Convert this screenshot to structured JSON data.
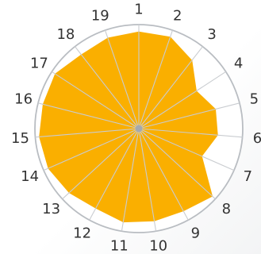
{
  "chart_data": {
    "type": "radar",
    "title": "",
    "categories": [
      "1",
      "2",
      "3",
      "4",
      "5",
      "6",
      "7",
      "8",
      "9",
      "10",
      "11",
      "12",
      "13",
      "14",
      "15",
      "16",
      "17",
      "18",
      "19"
    ],
    "series": [
      {
        "values": [
          0.93,
          0.93,
          0.83,
          0.66,
          0.76,
          0.76,
          0.66,
          0.96,
          0.9,
          0.9,
          0.91,
          0.87,
          0.91,
          0.95,
          0.96,
          0.95,
          0.96,
          0.9,
          0.92
        ]
      }
    ],
    "rlim": [
      0,
      1
    ],
    "ring_count": 4,
    "grid": true,
    "legend": "none",
    "colors": {
      "fill": "#FAAF00",
      "grid": "#C9CCD0",
      "outer_ring": "#B9BDC2",
      "hub": "#A5A9AE",
      "label": "#333333"
    }
  }
}
